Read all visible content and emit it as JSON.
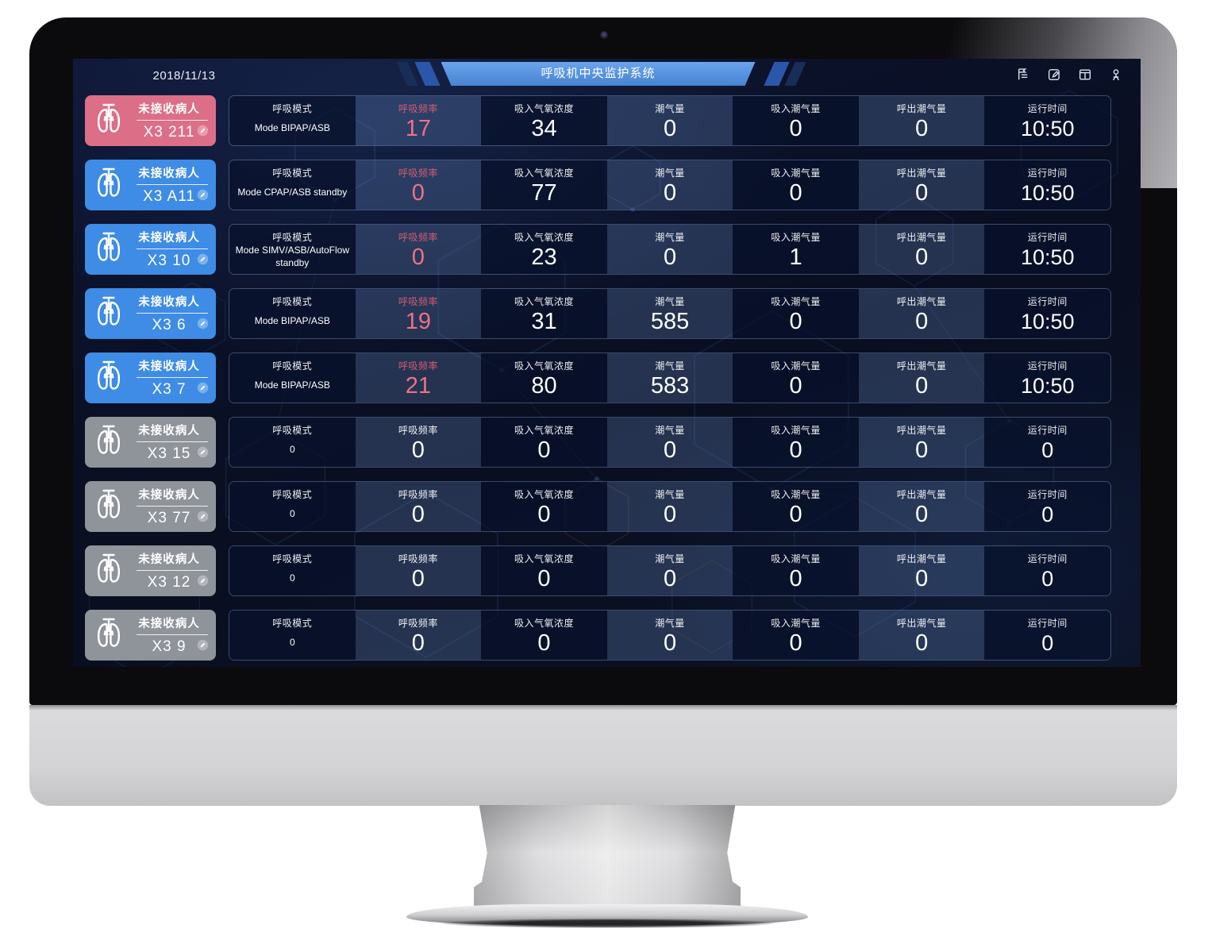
{
  "header": {
    "date": "2018/11/13",
    "title": "呼吸机中央监护系统",
    "icons": [
      "log-list-icon",
      "edit-note-icon",
      "window-layout-icon",
      "user-icon"
    ]
  },
  "columns": [
    {
      "key": "mode",
      "label": "呼吸模式"
    },
    {
      "key": "rr",
      "label": "呼吸频率"
    },
    {
      "key": "fio2",
      "label": "吸入气氧浓度"
    },
    {
      "key": "vt",
      "label": "潮气量"
    },
    {
      "key": "vti",
      "label": "吸入潮气量"
    },
    {
      "key": "vte",
      "label": "呼出潮气量"
    },
    {
      "key": "time",
      "label": "运行时间"
    }
  ],
  "patients": [
    {
      "status": "未接收病人",
      "id": "X3 211",
      "state": "alarm",
      "values": {
        "mode": "Mode BIPAP/ASB",
        "rr": "17",
        "fio2": "34",
        "vt": "0",
        "vti": "0",
        "vte": "0",
        "time": "10:50"
      }
    },
    {
      "status": "未接收病人",
      "id": "X3 A11",
      "state": "online",
      "values": {
        "mode": "Mode CPAP/ASB standby",
        "rr": "0",
        "fio2": "77",
        "vt": "0",
        "vti": "0",
        "vte": "0",
        "time": "10:50"
      }
    },
    {
      "status": "未接收病人",
      "id": "X3 10",
      "state": "online",
      "values": {
        "mode": "Mode SIMV/ASB/AutoFlow standby",
        "rr": "0",
        "fio2": "23",
        "vt": "0",
        "vti": "1",
        "vte": "0",
        "time": "10:50"
      }
    },
    {
      "status": "未接收病人",
      "id": "X3 6",
      "state": "online",
      "values": {
        "mode": "Mode BIPAP/ASB",
        "rr": "19",
        "fio2": "31",
        "vt": "585",
        "vti": "0",
        "vte": "0",
        "time": "10:50"
      }
    },
    {
      "status": "未接收病人",
      "id": "X3 7",
      "state": "online",
      "values": {
        "mode": "Mode BIPAP/ASB",
        "rr": "21",
        "fio2": "80",
        "vt": "583",
        "vti": "0",
        "vte": "0",
        "time": "10:50"
      }
    },
    {
      "status": "未接收病人",
      "id": "X3 15",
      "state": "offline",
      "values": {
        "mode": "0",
        "rr": "0",
        "fio2": "0",
        "vt": "0",
        "vti": "0",
        "vte": "0",
        "time": "0"
      }
    },
    {
      "status": "未接收病人",
      "id": "X3 77",
      "state": "offline",
      "values": {
        "mode": "0",
        "rr": "0",
        "fio2": "0",
        "vt": "0",
        "vti": "0",
        "vte": "0",
        "time": "0"
      }
    },
    {
      "status": "未接收病人",
      "id": "X3 12",
      "state": "offline",
      "values": {
        "mode": "0",
        "rr": "0",
        "fio2": "0",
        "vt": "0",
        "vti": "0",
        "vte": "0",
        "time": "0"
      }
    },
    {
      "status": "未接收病人",
      "id": "X3 9",
      "state": "offline",
      "values": {
        "mode": "0",
        "rr": "0",
        "fio2": "0",
        "vt": "0",
        "vti": "0",
        "vte": "0",
        "time": "0"
      }
    }
  ],
  "colors": {
    "alarm": "#dd6e87",
    "online": "#3e8ce5",
    "offline": "#8f939a",
    "accent_pink": "#ee7187",
    "accent_pink_dim": "#d25d72",
    "banner_blue": "#4e92ea",
    "stripe_dark": "#182d58",
    "stripe_mid": "#2b57ab"
  }
}
